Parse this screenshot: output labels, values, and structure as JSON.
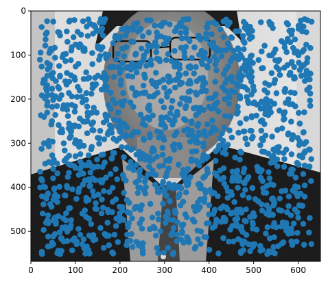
{
  "chart_data": {
    "type": "scatter",
    "title": "",
    "xlabel": "",
    "ylabel": "",
    "xlim": [
      0,
      650
    ],
    "ylim": [
      568,
      0
    ],
    "y_axis_inverted": true,
    "grid": false,
    "legend": "none",
    "x_ticks": [
      "0",
      "100",
      "200",
      "300",
      "400",
      "500",
      "600"
    ],
    "y_ticks": [
      "0",
      "100",
      "200",
      "300",
      "400",
      "500"
    ],
    "background_image": "grayscale-portrait-man-glasses-dark-suit",
    "colors": {
      "marker": "#1f77b4",
      "face_overlay": "#b0b0b0",
      "suit": "#1c1c1c"
    },
    "x_tick_values": [
      0,
      100,
      200,
      300,
      400,
      500,
      600
    ],
    "y_tick_values": [
      0,
      100,
      200,
      300,
      400,
      500
    ],
    "series": [
      {
        "point_count": 1500,
        "seed": 7,
        "x_range": [
          20,
          630
        ],
        "y_range": [
          18,
          552
        ]
      }
    ]
  }
}
